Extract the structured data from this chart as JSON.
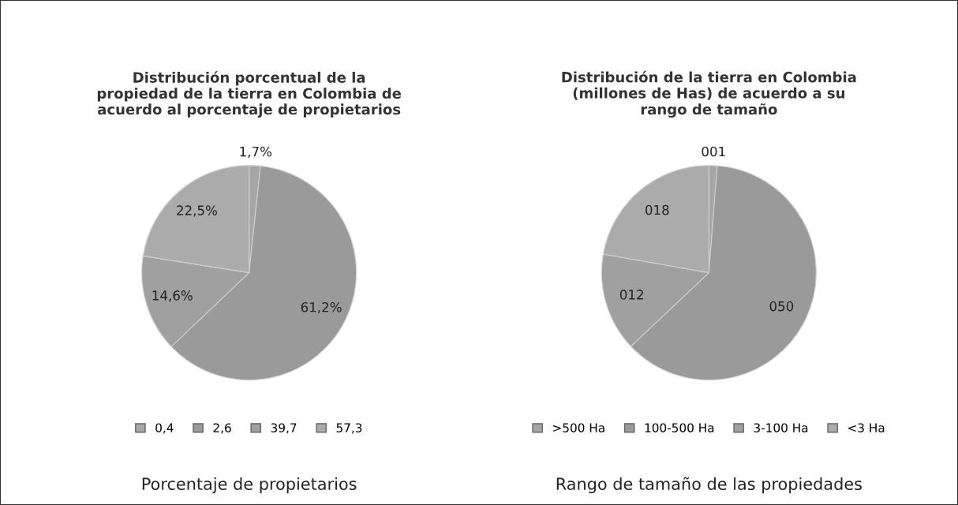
{
  "chart_data": [
    {
      "type": "pie",
      "title": "Distribución porcentual de la\npropiedad de la tierra en Colombia de\nacuerdo al porcentaje de propietarios",
      "xlabel": "Porcentaje de propietarios",
      "categories": [
        "0,4",
        "2,6",
        "39,7",
        "57,3"
      ],
      "values": [
        1.7,
        61.2,
        14.6,
        22.5
      ],
      "value_labels": [
        "1,7%",
        "61,2%",
        "14,6%",
        "22,5%"
      ],
      "colors": [
        "#a6a6a6",
        "#9a9a9a",
        "#a0a0a0",
        "#ababab"
      ],
      "legend": "bottom"
    },
    {
      "type": "pie",
      "title": "Distribución de la tierra en Colombia\n(millones de Has) de acuerdo a su\nrango de tamaño",
      "xlabel": "Rango de tamaño de las propiedades",
      "categories": [
        ">500 Ha",
        "100-500 Ha",
        "3-100 Ha",
        "<3 Ha"
      ],
      "values": [
        1,
        50,
        12,
        18
      ],
      "value_labels": [
        "001",
        "050",
        "012",
        "018"
      ],
      "colors": [
        "#a6a6a6",
        "#9a9a9a",
        "#a0a0a0",
        "#ababab"
      ],
      "legend": "bottom"
    }
  ]
}
